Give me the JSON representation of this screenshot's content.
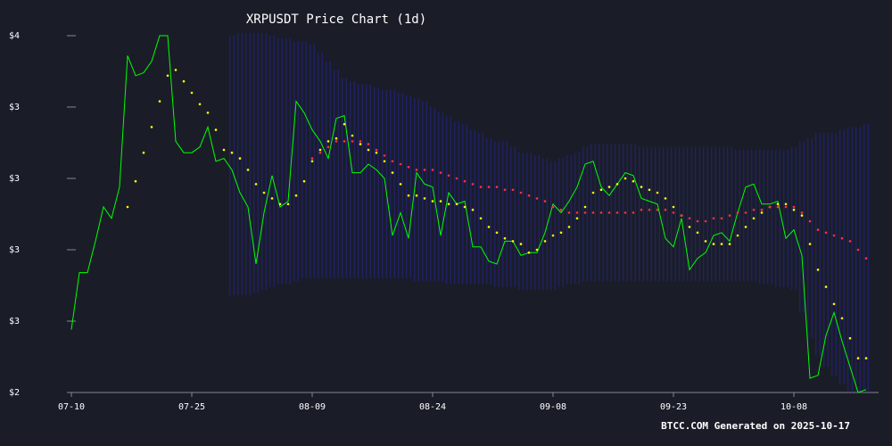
{
  "chart_data": {
    "type": "line",
    "title": "XRPUSDT Price Chart (1d)",
    "footer": "BTCC.COM Generated on 2025-10-17",
    "categories": [
      "07-10",
      null,
      null,
      null,
      null,
      null,
      null,
      null,
      null,
      null,
      null,
      null,
      null,
      null,
      null,
      "07-25",
      null,
      null,
      null,
      null,
      null,
      null,
      null,
      null,
      null,
      null,
      null,
      null,
      null,
      null,
      "08-09",
      null,
      null,
      null,
      null,
      null,
      null,
      null,
      null,
      null,
      null,
      null,
      null,
      null,
      null,
      "08-24",
      null,
      null,
      null,
      null,
      null,
      null,
      null,
      null,
      null,
      null,
      null,
      null,
      null,
      null,
      "09-08",
      null,
      null,
      null,
      null,
      null,
      null,
      null,
      null,
      null,
      null,
      null,
      null,
      null,
      null,
      "09-23",
      null,
      null,
      null,
      null,
      null,
      null,
      null,
      null,
      null,
      null,
      null,
      null,
      null,
      null,
      "10-08",
      null,
      null,
      null,
      null,
      null,
      null,
      null,
      null,
      null
    ],
    "ylim": [
      2.3,
      3.55
    ],
    "yticks": [
      {
        "value": 2.3,
        "label": "$2"
      },
      {
        "value": 2.55,
        "label": "$3"
      },
      {
        "value": 2.8,
        "label": "$3"
      },
      {
        "value": 3.05,
        "label": "$3"
      },
      {
        "value": 3.3,
        "label": "$3"
      },
      {
        "value": 3.55,
        "label": "$4"
      }
    ],
    "bands": {
      "color": "#23237a",
      "upper": [
        null,
        null,
        null,
        null,
        null,
        null,
        null,
        null,
        null,
        null,
        null,
        null,
        null,
        null,
        null,
        null,
        null,
        null,
        null,
        null,
        3.55,
        3.56,
        3.56,
        3.56,
        3.56,
        3.55,
        3.54,
        3.54,
        3.53,
        3.53,
        3.52,
        3.49,
        3.46,
        3.43,
        3.4,
        3.39,
        3.38,
        3.38,
        3.37,
        3.36,
        3.36,
        3.35,
        3.34,
        3.33,
        3.32,
        3.3,
        3.28,
        3.27,
        3.25,
        3.24,
        3.22,
        3.21,
        3.19,
        3.18,
        3.18,
        3.16,
        3.14,
        3.14,
        3.13,
        3.12,
        3.11,
        3.12,
        3.13,
        3.14,
        3.16,
        3.17,
        3.17,
        3.17,
        3.17,
        3.17,
        3.17,
        3.16,
        3.16,
        3.16,
        3.16,
        3.16,
        3.16,
        3.16,
        3.16,
        3.16,
        3.16,
        3.16,
        3.16,
        3.15,
        3.15,
        3.15,
        3.15,
        3.15,
        3.15,
        3.15,
        3.16,
        3.18,
        3.19,
        3.21,
        3.21,
        3.21,
        3.22,
        3.23,
        3.23,
        3.24
      ],
      "lower": [
        null,
        null,
        null,
        null,
        null,
        null,
        null,
        null,
        null,
        null,
        null,
        null,
        null,
        null,
        null,
        null,
        null,
        null,
        null,
        null,
        2.64,
        2.64,
        2.64,
        2.65,
        2.66,
        2.67,
        2.68,
        2.68,
        2.69,
        2.7,
        2.7,
        2.7,
        2.7,
        2.7,
        2.7,
        2.7,
        2.7,
        2.7,
        2.7,
        2.7,
        2.7,
        2.7,
        2.7,
        2.69,
        2.69,
        2.69,
        2.69,
        2.68,
        2.68,
        2.68,
        2.68,
        2.68,
        2.68,
        2.67,
        2.67,
        2.67,
        2.66,
        2.66,
        2.66,
        2.66,
        2.66,
        2.67,
        2.68,
        2.68,
        2.69,
        2.69,
        2.69,
        2.69,
        2.69,
        2.69,
        2.69,
        2.69,
        2.69,
        2.69,
        2.69,
        2.69,
        2.69,
        2.69,
        2.69,
        2.69,
        2.69,
        2.69,
        2.69,
        2.69,
        2.69,
        2.69,
        2.68,
        2.68,
        2.67,
        2.67,
        2.66,
        2.58,
        2.49,
        2.43,
        2.39,
        2.36,
        2.33,
        2.3,
        2.3,
        2.3
      ]
    },
    "series": [
      {
        "color": "#00ff00",
        "style": "line",
        "values": [
          2.52,
          2.72,
          2.72,
          2.83,
          2.95,
          2.91,
          3.02,
          3.48,
          3.41,
          3.42,
          3.46,
          3.55,
          3.55,
          3.18,
          3.14,
          3.14,
          3.16,
          3.23,
          3.11,
          3.12,
          3.08,
          3.0,
          2.95,
          2.75,
          2.93,
          3.06,
          2.95,
          2.97,
          3.32,
          3.28,
          3.22,
          3.18,
          3.12,
          3.26,
          3.27,
          3.07,
          3.07,
          3.1,
          3.08,
          3.05,
          2.85,
          2.93,
          2.84,
          3.07,
          3.03,
          3.02,
          2.85,
          3.0,
          2.96,
          2.97,
          2.81,
          2.81,
          2.76,
          2.75,
          2.83,
          2.83,
          2.78,
          2.79,
          2.79,
          2.86,
          2.96,
          2.93,
          2.97,
          3.02,
          3.1,
          3.11,
          3.02,
          2.99,
          3.03,
          3.07,
          3.06,
          2.98,
          2.97,
          2.96,
          2.84,
          2.81,
          2.91,
          2.73,
          2.77,
          2.79,
          2.85,
          2.86,
          2.83,
          2.93,
          3.02,
          3.03,
          2.96,
          2.96,
          2.97,
          2.84,
          2.87,
          2.78,
          2.35,
          2.36,
          2.5,
          2.58,
          2.48,
          2.39,
          2.3,
          2.31
        ]
      },
      {
        "color": "#ffff00",
        "style": "dots",
        "values": [
          null,
          null,
          null,
          null,
          null,
          null,
          null,
          2.95,
          3.04,
          3.14,
          3.23,
          3.32,
          3.41,
          3.43,
          3.39,
          3.35,
          3.31,
          3.28,
          3.22,
          3.15,
          3.14,
          3.12,
          3.08,
          3.03,
          3.0,
          2.98,
          2.96,
          2.96,
          2.99,
          3.04,
          3.11,
          3.15,
          3.18,
          3.19,
          3.24,
          3.2,
          3.17,
          3.15,
          3.14,
          3.11,
          3.07,
          3.03,
          2.99,
          2.99,
          2.98,
          2.97,
          2.97,
          2.96,
          2.96,
          2.95,
          2.94,
          2.91,
          2.88,
          2.86,
          2.84,
          2.83,
          2.82,
          2.79,
          2.8,
          2.83,
          2.85,
          2.86,
          2.88,
          2.91,
          2.95,
          3.0,
          3.01,
          3.02,
          3.03,
          3.05,
          3.04,
          3.02,
          3.01,
          3.0,
          2.98,
          2.95,
          2.92,
          2.88,
          2.86,
          2.83,
          2.82,
          2.82,
          2.82,
          2.85,
          2.88,
          2.91,
          2.93,
          2.95,
          2.96,
          2.96,
          2.94,
          2.92,
          2.82,
          2.73,
          2.67,
          2.61,
          2.56,
          2.49,
          2.42,
          2.42
        ]
      },
      {
        "color": "#ff3333",
        "style": "dots",
        "values": [
          null,
          null,
          null,
          null,
          null,
          null,
          null,
          null,
          null,
          null,
          null,
          null,
          null,
          null,
          null,
          null,
          null,
          null,
          null,
          null,
          null,
          null,
          null,
          null,
          null,
          null,
          null,
          null,
          null,
          null,
          3.12,
          3.14,
          3.16,
          3.18,
          3.18,
          3.18,
          3.18,
          3.17,
          3.15,
          3.13,
          3.11,
          3.1,
          3.09,
          3.08,
          3.08,
          3.08,
          3.07,
          3.06,
          3.05,
          3.04,
          3.03,
          3.02,
          3.02,
          3.02,
          3.01,
          3.01,
          3.0,
          2.99,
          2.98,
          2.97,
          2.95,
          2.94,
          2.93,
          2.93,
          2.93,
          2.93,
          2.93,
          2.93,
          2.93,
          2.93,
          2.93,
          2.94,
          2.94,
          2.94,
          2.94,
          2.93,
          2.92,
          2.91,
          2.9,
          2.9,
          2.91,
          2.91,
          2.92,
          2.93,
          2.93,
          2.94,
          2.94,
          2.95,
          2.95,
          2.95,
          2.95,
          2.93,
          2.9,
          2.87,
          2.86,
          2.85,
          2.84,
          2.83,
          2.8,
          2.77
        ]
      }
    ]
  }
}
